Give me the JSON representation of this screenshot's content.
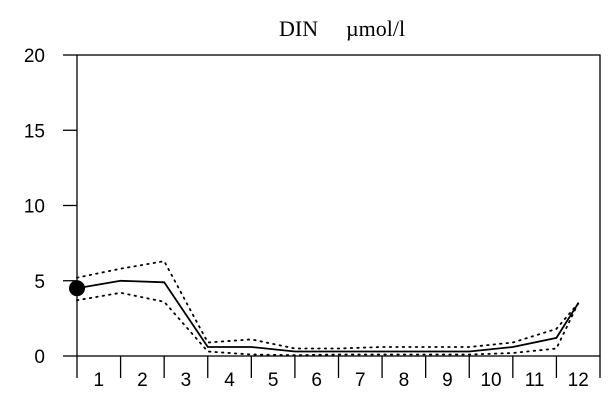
{
  "chart_data": {
    "type": "line",
    "title": "DIN",
    "unit": "µmol/l",
    "xlabel": "",
    "ylabel": "",
    "x": [
      1,
      2,
      3,
      4,
      5,
      6,
      7,
      8,
      9,
      10,
      11,
      12
    ],
    "xlim": [
      0.5,
      12.5
    ],
    "ylim": [
      0,
      20
    ],
    "y_ticks": [
      0,
      5,
      10,
      15,
      20
    ],
    "x_ticks": [
      1,
      2,
      3,
      4,
      5,
      6,
      7,
      8,
      9,
      10,
      11,
      12
    ],
    "grid": false,
    "legend": "none",
    "series": [
      {
        "style": "solid",
        "color": "#000000",
        "x": [
          0.5,
          1.5,
          2.5,
          3.5,
          4.5,
          5.5,
          6.5,
          7.5,
          8.5,
          9.5,
          10.5,
          11.5
        ],
        "values": [
          4.5,
          5.0,
          4.9,
          0.6,
          0.6,
          0.3,
          0.3,
          0.3,
          0.3,
          0.3,
          0.6,
          1.2
        ]
      },
      {
        "style": "dotted",
        "color": "#000000",
        "x": [
          0.5,
          1.5,
          2.5,
          3.5,
          4.5,
          5.5,
          6.5,
          7.5,
          8.5,
          9.5,
          10.5,
          11.5
        ],
        "values": [
          5.2,
          5.8,
          6.3,
          0.9,
          1.1,
          0.5,
          0.5,
          0.6,
          0.6,
          0.6,
          0.9,
          1.8
        ]
      },
      {
        "style": "dotted",
        "color": "#000000",
        "x": [
          0.5,
          1.5,
          2.5,
          3.5,
          4.5,
          5.5,
          6.5,
          7.5,
          8.5,
          9.5,
          10.5,
          11.5
        ],
        "values": [
          3.7,
          4.2,
          3.6,
          0.3,
          0.1,
          0.05,
          0.1,
          0.1,
          0.1,
          0.1,
          0.2,
          0.5
        ]
      }
    ],
    "trailing_point": {
      "x": 12,
      "value": 3.5
    },
    "marker": {
      "x": 0.5,
      "value": 4.5,
      "shape": "filled-circle"
    }
  }
}
